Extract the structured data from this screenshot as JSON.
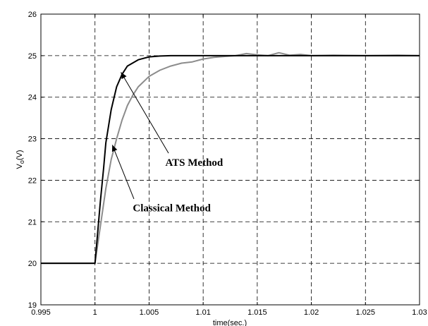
{
  "chart_data": {
    "type": "line",
    "title": "",
    "xlabel": "time(sec.)",
    "ylabel_main": "V",
    "ylabel_sub": "o",
    "ylabel_unit": "(V)",
    "xlim": [
      0.995,
      1.03
    ],
    "ylim": [
      19,
      26
    ],
    "xticks": [
      0.995,
      1,
      1.005,
      1.01,
      1.015,
      1.02,
      1.025,
      1.03
    ],
    "xtick_labels": [
      "0.995",
      "1",
      "1.005",
      "1.01",
      "1.015",
      "1.02",
      "1.025",
      "1.03"
    ],
    "yticks": [
      19,
      20,
      21,
      22,
      23,
      24,
      25,
      26
    ],
    "ytick_labels": [
      "19",
      "20",
      "21",
      "22",
      "23",
      "24",
      "25",
      "26"
    ],
    "grid": true,
    "grid_style": "dashed",
    "series": [
      {
        "color": "#000000",
        "x": [
          0.995,
          1.0,
          1.0002,
          1.0005,
          1.0008,
          1.001,
          1.0015,
          1.002,
          1.0025,
          1.003,
          1.004,
          1.005,
          1.006,
          1.007,
          1.008,
          1.01,
          1.015,
          1.02,
          1.025,
          1.03
        ],
        "y": [
          20,
          20,
          20.6,
          21.5,
          22.3,
          22.9,
          23.7,
          24.25,
          24.55,
          24.75,
          24.9,
          24.97,
          24.99,
          25,
          25,
          25,
          25,
          25,
          25,
          25
        ]
      },
      {
        "color": "#8c8c8c",
        "x": [
          0.995,
          1.0,
          1.0005,
          1.001,
          1.0015,
          1.002,
          1.0025,
          1.003,
          1.0035,
          1.004,
          1.005,
          1.006,
          1.007,
          1.008,
          1.009,
          1.01,
          1.011,
          1.012,
          1.013,
          1.014,
          1.015,
          1.016,
          1.017,
          1.018,
          1.019,
          1.02,
          1.022,
          1.025,
          1.028,
          1.03
        ],
        "y": [
          20,
          20,
          20.9,
          21.8,
          22.5,
          23.0,
          23.45,
          23.8,
          24.05,
          24.25,
          24.5,
          24.65,
          24.75,
          24.82,
          24.85,
          24.92,
          24.96,
          24.98,
          25.0,
          25.05,
          25.02,
          25.0,
          25.07,
          25.01,
          25.03,
          25.0,
          25.01,
          25.0,
          25.01,
          25.0
        ]
      }
    ],
    "annotations": [
      {
        "text": "ATS Method",
        "text_x": 1.0065,
        "text_y": 22.35,
        "arrow_from": [
          1.0068,
          22.65
        ],
        "arrow_to": [
          1.0024,
          24.6
        ]
      },
      {
        "text": "Classical Method",
        "text_x": 1.0035,
        "text_y": 21.25,
        "arrow_from": [
          1.0036,
          21.55
        ],
        "arrow_to": [
          1.0016,
          22.85
        ]
      }
    ]
  }
}
